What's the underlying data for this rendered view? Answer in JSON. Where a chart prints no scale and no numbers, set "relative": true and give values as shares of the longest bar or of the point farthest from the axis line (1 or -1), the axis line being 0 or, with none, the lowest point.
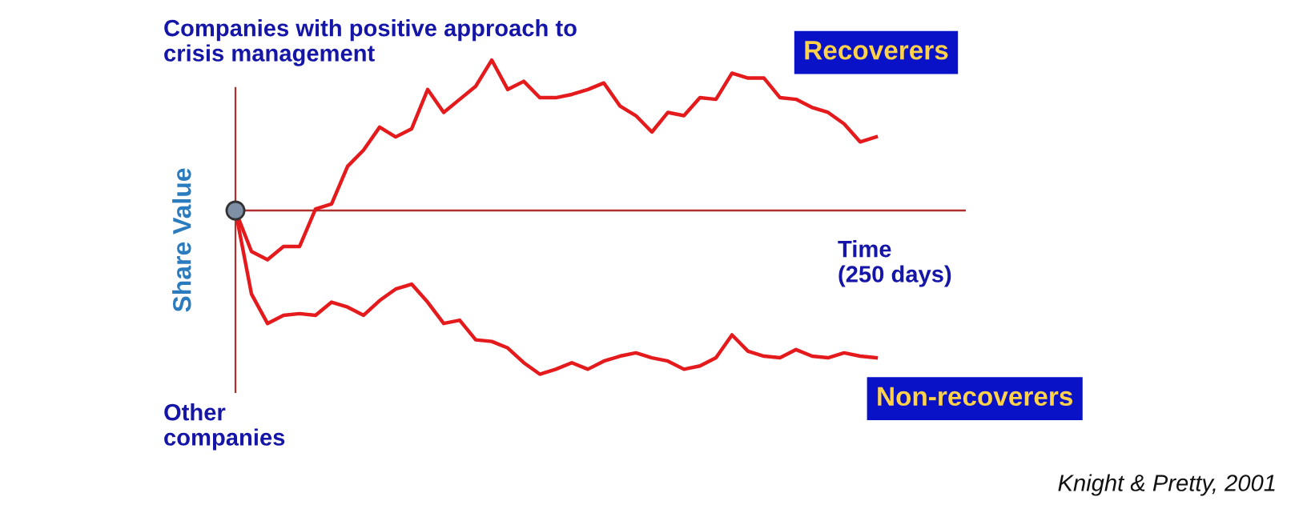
{
  "chart_data": {
    "type": "line",
    "relative": true,
    "ref_lines": [
      {
        "axis": "y",
        "value": 0,
        "color": "#b03030",
        "line_style": "solid"
      }
    ],
    "title": "Companies with positive approach to\ncrisis management",
    "xlabel": "Time\n(250 days)",
    "ylabel": "Share Value",
    "annotations": [
      "Other\ncompanies",
      "Knight & Pretty, 2001"
    ],
    "categories": [
      null,
      null,
      null,
      null,
      null,
      null,
      null,
      null,
      null,
      null,
      null,
      null,
      null,
      null,
      null,
      null,
      null,
      null,
      null,
      null,
      null,
      null,
      null,
      null,
      null,
      null,
      null,
      null,
      null,
      null,
      null,
      null,
      null,
      null,
      null,
      null,
      null,
      null,
      null,
      null,
      null
    ],
    "series": [
      {
        "name": "Recoverers",
        "color": "#e41a1c",
        "values": [
          0,
          -0.25,
          -0.3,
          -0.22,
          -0.22,
          0.01,
          0.04,
          0.27,
          0.37,
          0.51,
          0.45,
          0.5,
          0.74,
          0.6,
          0.68,
          0.76,
          0.92,
          0.74,
          0.79,
          0.69,
          0.69,
          0.71,
          0.74,
          0.78,
          0.64,
          0.58,
          0.48,
          0.6,
          0.58,
          0.69,
          0.68,
          0.84,
          0.81,
          0.81,
          0.69,
          0.68,
          0.63,
          0.6,
          0.53,
          0.42,
          0.45
        ]
      },
      {
        "name": "Non-recoverers",
        "color": "#e41a1c",
        "values": [
          0,
          -0.51,
          -0.69,
          -0.64,
          -0.63,
          -0.64,
          -0.56,
          -0.59,
          -0.64,
          -0.55,
          -0.48,
          -0.45,
          -0.56,
          -0.69,
          -0.67,
          -0.79,
          -0.8,
          -0.84,
          -0.93,
          -1,
          -0.97,
          -0.93,
          -0.97,
          -0.92,
          -0.89,
          -0.87,
          -0.9,
          -0.92,
          -0.97,
          -0.95,
          -0.9,
          -0.76,
          -0.86,
          -0.89,
          -0.9,
          -0.85,
          -0.89,
          -0.9,
          -0.87,
          -0.89,
          -0.9
        ]
      }
    ]
  }
}
